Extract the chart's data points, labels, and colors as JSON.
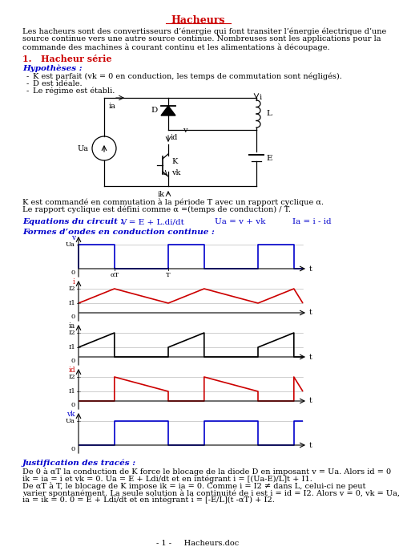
{
  "title": "Hacheurs",
  "intro_lines": [
    "Les hacheurs sont des convertisseurs d’énergie qui font transiter l’énergie électrique d’une",
    "source continue vers une autre source continue. Nombreuses sont les applications pour la",
    "commande des machines à courant continu et les alimentations à découpage."
  ],
  "section1": "1.   Hacheur série",
  "hypotheses": "Hypothèses :",
  "hyp1": "K est parfait (vk = 0 en conduction, les temps de commutation sont négligés).",
  "hyp2": "D est idéale.",
  "hyp3": "Le régime est établi.",
  "commande_text1": "K est commandé en commutation à la période T avec un rapport cyclique α.",
  "commande_text2": "Le rapport cyclique est défini comme α =(temps de conduction) / T.",
  "eq_label": "Equations du circuit :",
  "eq1": "V = E + L.di/dt",
  "eq2": "Ua = v + vk",
  "eq3": "Ia = i - id",
  "formes_label": "Formes d’ondes en conduction continue :",
  "justif_label": "Justification des tracés :",
  "justif_lines": [
    "De 0 à αT la conduction de K force le blocage de la diode D en imposant v = Ua. Alors id = 0",
    "ik = ia = i et vk = 0. Ua = E + Ldi/dt et en intégrant i = [(Ua-E)/L]t + I1.",
    "De αT à T, le blocage de K impose ik = ia = 0. Comme i = I2 ≠ dans L, celui-ci ne peut",
    "varier spontanément. La seule solution à la continuité de i est i = id = I2. Alors v = 0, vk = Ua,",
    "ia = ik = 0. 0 = E + Ldi/dt et en intégrant i = [-E/L](t -αT) + I2."
  ],
  "footer": "- 1 -     Hacheurs.doc",
  "alpha": 0.4,
  "colors": {
    "title": "#cc0000",
    "section": "#cc0000",
    "hypotheses": "#0000cc",
    "equations": "#0000cc",
    "formes": "#0000cc",
    "justif": "#0000cc",
    "v_wave": "#0000cc",
    "i_wave": "#cc0000",
    "ia_wave": "#000000",
    "id_wave": "#cc0000",
    "vk_wave": "#0000cc"
  }
}
